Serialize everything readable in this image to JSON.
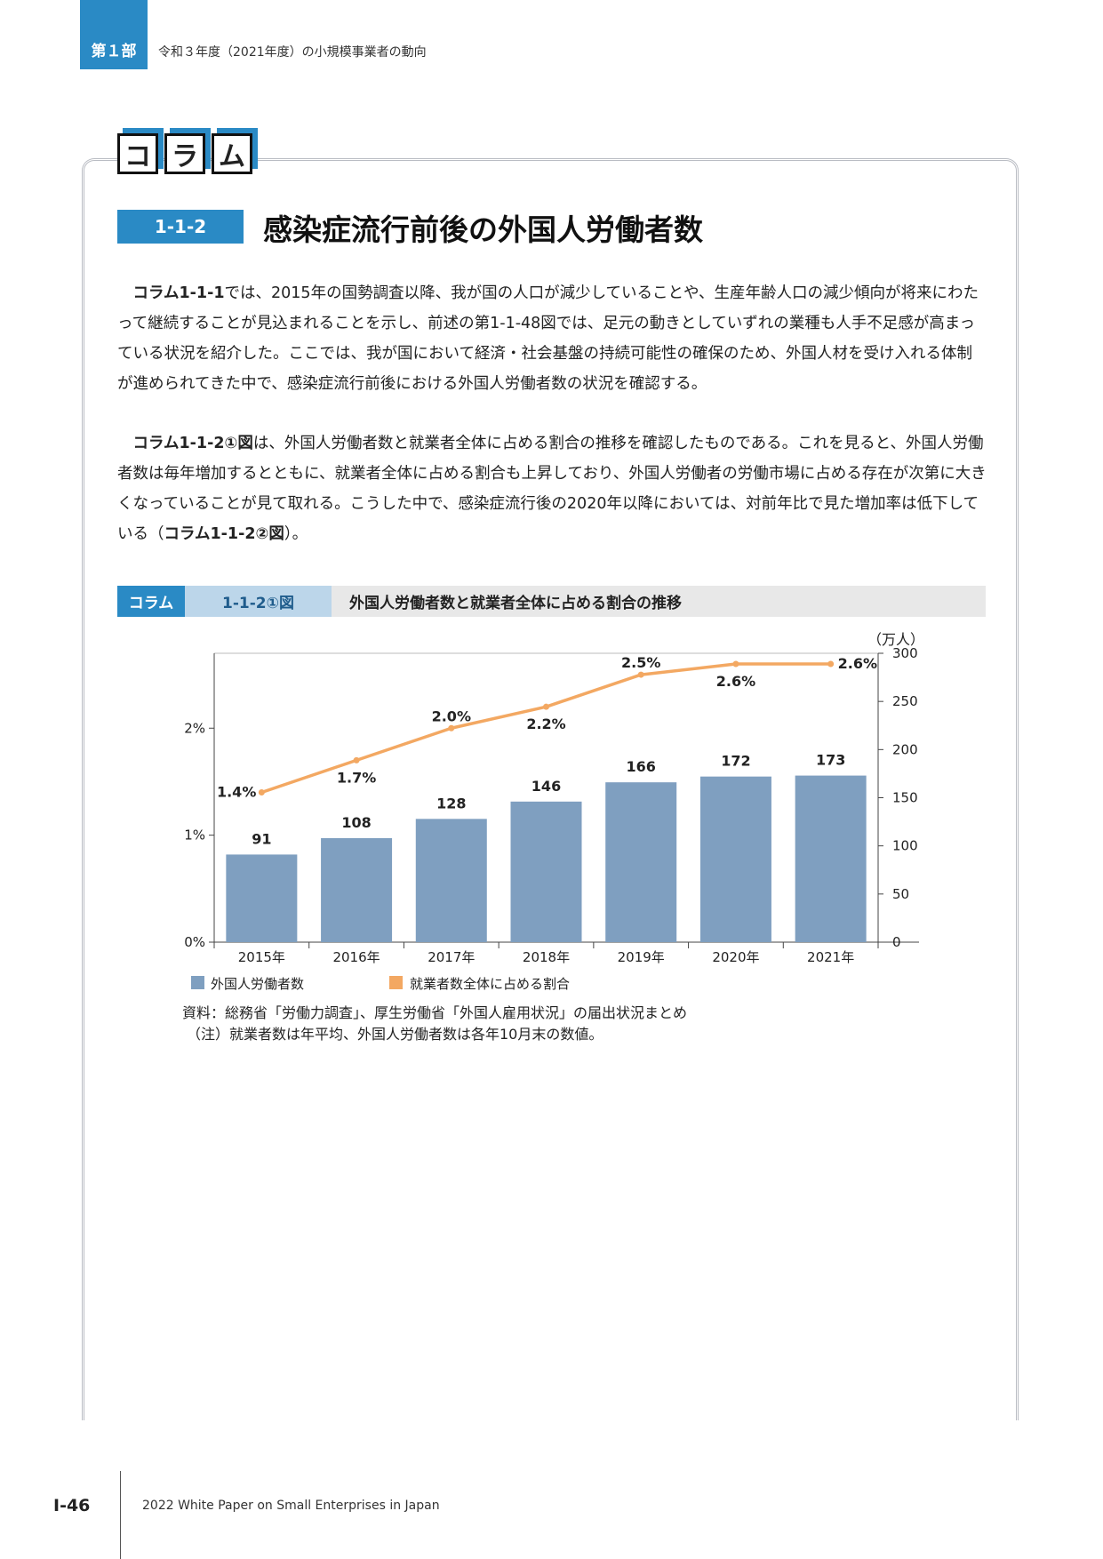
{
  "header": {
    "part_label": "第１部",
    "part_title": "令和３年度（2021年度）の小規模事業者の動向"
  },
  "column": {
    "badge_chars": [
      "コ",
      "ラ",
      "ム"
    ],
    "section_number": "1-1-2",
    "section_title": "感染症流行前後の外国人労働者数"
  },
  "paragraphs": {
    "p1": {
      "lead": "コラム1-1-1",
      "text": "では、2015年の国勢調査以降、我が国の人口が減少していることや、生産年齢人口の減少傾向が将来にわたって継続することが見込まれることを示し、前述の第1-1-48図では、足元の動きとしていずれの業種も人手不足感が高まっている状況を紹介した。ここでは、我が国において経済・社会基盤の持続可能性の確保のため、外国人材を受け入れる体制が進められてきた中で、感染症流行前後における外国人労働者数の状況を確認する。"
    },
    "p2": {
      "lead": "コラム1-1-2①図",
      "text": "は、外国人労働者数と就業者全体に占める割合の推移を確認したものである。これを見ると、外国人労働者数は毎年増加するとともに、就業者全体に占める割合も上昇しており、外国人労働者の労働市場に占める存在が次第に大きくなっていることが見て取れる。こうした中で、感染症流行後の2020年以降においては、対前年比で見た増加率は低下している（",
      "ref": "コラム1-1-2②図",
      "tail": "）。"
    }
  },
  "figure": {
    "tag": "コラム",
    "number": "1-1-2①図",
    "title": "外国人労働者数と就業者全体に占める割合の推移",
    "source": "資料：総務省「労働力調査」、厚生労働省「外国人雇用状況」の届出状況まとめ",
    "note": "（注）就業者数は年平均、外国人労働者数は各年10月末の数値。"
  },
  "chart_data": {
    "type": "bar",
    "categories": [
      "2015年",
      "2016年",
      "2017年",
      "2018年",
      "2019年",
      "2020年",
      "2021年"
    ],
    "series": [
      {
        "name": "外国人労働者数",
        "type": "bar",
        "axis": "right",
        "values": [
          91,
          108,
          128,
          146,
          166,
          172,
          173
        ],
        "labels": [
          "91",
          "108",
          "128",
          "146",
          "166",
          "172",
          "173"
        ]
      },
      {
        "name": "就業者数全体に占める割合",
        "type": "line",
        "axis": "left",
        "values": [
          1.4,
          1.7,
          2.0,
          2.2,
          2.5,
          2.6,
          2.6
        ],
        "labels": [
          "1.4%",
          "1.7%",
          "2.0%",
          "2.2%",
          "2.5%",
          "2.6%",
          "2.6%"
        ]
      }
    ],
    "left_axis": {
      "ticks": [
        "0%",
        "1%",
        "2%"
      ],
      "ylim": [
        0,
        2.7
      ]
    },
    "right_axis": {
      "unit": "（万人）",
      "ticks": [
        "0",
        "50",
        "100",
        "150",
        "200",
        "250",
        "300"
      ],
      "ylim": [
        0,
        300
      ]
    },
    "colors": {
      "bar": "#7f9fc0",
      "line": "#f3a862"
    },
    "legend_position": "bottom-left"
  },
  "footer": {
    "page_number": "I-46",
    "publication": "2022 White Paper on Small Enterprises in Japan"
  }
}
